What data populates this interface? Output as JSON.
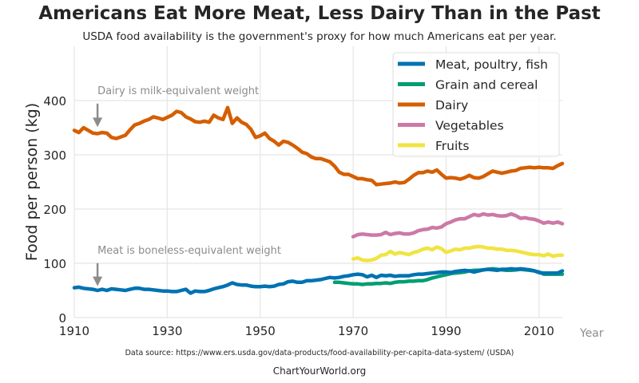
{
  "title": "Americans Eat More Meat, Less Dairy Than in the Past",
  "subtitle": "USDA food availability is the government's proxy for how much Americans eat per year.",
  "source": "Data source: https://www.ers.usda.gov/data-products/food-availability-per-capita-data-system/ (USDA)",
  "footer": "ChartYourWorld.org",
  "chart_data": {
    "type": "line",
    "ylabel": "Food per person (kg)",
    "xlabel": "Year",
    "xlim": [
      1910,
      2015
    ],
    "ylim": [
      0,
      500
    ],
    "xticks": [
      1910,
      1930,
      1950,
      1970,
      1990,
      2010
    ],
    "yticks": [
      0,
      100,
      200,
      300,
      400
    ],
    "grid": true,
    "legend_position": "top-right",
    "annotations": [
      {
        "text": "Dairy is milk-equivalent weight",
        "x": 1915,
        "y": 412,
        "arrow_to": 345
      },
      {
        "text": "Meat is boneless-equivalent weight",
        "x": 1915,
        "y": 118,
        "arrow_to": 52
      }
    ],
    "series": [
      {
        "name": "Meat, poultry, fish",
        "color": "#0072B2",
        "x": [
          1910,
          1911,
          1912,
          1913,
          1914,
          1915,
          1916,
          1917,
          1918,
          1919,
          1920,
          1921,
          1922,
          1923,
          1924,
          1925,
          1926,
          1927,
          1928,
          1929,
          1930,
          1931,
          1932,
          1933,
          1934,
          1935,
          1936,
          1937,
          1938,
          1939,
          1940,
          1941,
          1942,
          1943,
          1944,
          1945,
          1946,
          1947,
          1948,
          1949,
          1950,
          1951,
          1952,
          1953,
          1954,
          1955,
          1956,
          1957,
          1958,
          1959,
          1960,
          1961,
          1962,
          1963,
          1964,
          1965,
          1966,
          1967,
          1968,
          1969,
          1970,
          1971,
          1972,
          1973,
          1974,
          1975,
          1976,
          1977,
          1978,
          1979,
          1980,
          1981,
          1982,
          1983,
          1984,
          1985,
          1986,
          1987,
          1988,
          1989,
          1990,
          1991,
          1992,
          1993,
          1994,
          1995,
          1996,
          1997,
          1998,
          1999,
          2000,
          2001,
          2002,
          2003,
          2004,
          2005,
          2006,
          2007,
          2008,
          2009,
          2010,
          2011,
          2012,
          2013,
          2014,
          2015
        ],
        "values": [
          55,
          56,
          54,
          53,
          52,
          50,
          52,
          50,
          53,
          52,
          51,
          50,
          52,
          54,
          54,
          52,
          52,
          51,
          50,
          49,
          49,
          48,
          48,
          50,
          52,
          45,
          49,
          48,
          48,
          50,
          53,
          55,
          57,
          60,
          64,
          61,
          60,
          60,
          58,
          57,
          57,
          58,
          57,
          58,
          61,
          62,
          66,
          67,
          65,
          65,
          68,
          68,
          69,
          70,
          72,
          74,
          73,
          74,
          76,
          77,
          79,
          80,
          79,
          75,
          78,
          74,
          78,
          77,
          78,
          76,
          77,
          77,
          77,
          79,
          80,
          80,
          81,
          82,
          83,
          84,
          84,
          83,
          85,
          86,
          87,
          86,
          84,
          86,
          88,
          89,
          88,
          87,
          89,
          89,
          90,
          89,
          90,
          89,
          88,
          86,
          83,
          82,
          82,
          82,
          82,
          86
        ]
      },
      {
        "name": "Grain and cereal",
        "color": "#009E73",
        "x": [
          1966,
          1967,
          1968,
          1969,
          1970,
          1971,
          1972,
          1973,
          1974,
          1975,
          1976,
          1977,
          1978,
          1979,
          1980,
          1981,
          1982,
          1983,
          1984,
          1985,
          1986,
          1987,
          1988,
          1989,
          1990,
          1991,
          1992,
          1993,
          1994,
          1995,
          1996,
          1997,
          1998,
          1999,
          2000,
          2001,
          2002,
          2003,
          2004,
          2005,
          2006,
          2007,
          2008,
          2009,
          2010,
          2011,
          2012,
          2013,
          2014,
          2015
        ],
        "values": [
          65,
          65,
          64,
          63,
          62,
          62,
          61,
          62,
          62,
          63,
          63,
          64,
          63,
          65,
          66,
          66,
          67,
          67,
          68,
          68,
          70,
          73,
          75,
          77,
          79,
          81,
          82,
          83,
          84,
          86,
          87,
          87,
          88,
          89,
          90,
          89,
          88,
          87,
          87,
          88,
          89,
          88,
          87,
          86,
          84,
          80,
          80,
          80,
          80,
          80
        ]
      },
      {
        "name": "Dairy",
        "color": "#D55E00",
        "x": [
          1910,
          1911,
          1912,
          1913,
          1914,
          1915,
          1916,
          1917,
          1918,
          1919,
          1920,
          1921,
          1922,
          1923,
          1924,
          1925,
          1926,
          1927,
          1928,
          1929,
          1930,
          1931,
          1932,
          1933,
          1934,
          1935,
          1936,
          1937,
          1938,
          1939,
          1940,
          1941,
          1942,
          1943,
          1944,
          1945,
          1946,
          1947,
          1948,
          1949,
          1950,
          1951,
          1952,
          1953,
          1954,
          1955,
          1956,
          1957,
          1958,
          1959,
          1960,
          1961,
          1962,
          1963,
          1964,
          1965,
          1966,
          1967,
          1968,
          1969,
          1970,
          1971,
          1972,
          1973,
          1974,
          1975,
          1976,
          1977,
          1978,
          1979,
          1980,
          1981,
          1982,
          1983,
          1984,
          1985,
          1986,
          1987,
          1988,
          1989,
          1990,
          1991,
          1992,
          1993,
          1994,
          1995,
          1996,
          1997,
          1998,
          1999,
          2000,
          2001,
          2002,
          2003,
          2004,
          2005,
          2006,
          2007,
          2008,
          2009,
          2010,
          2011,
          2012,
          2013,
          2014,
          2015
        ],
        "values": [
          345,
          341,
          350,
          345,
          340,
          339,
          341,
          340,
          332,
          330,
          333,
          336,
          346,
          355,
          358,
          362,
          365,
          370,
          368,
          365,
          369,
          373,
          380,
          378,
          370,
          366,
          361,
          360,
          362,
          360,
          373,
          368,
          365,
          387,
          358,
          368,
          360,
          356,
          347,
          332,
          335,
          340,
          330,
          325,
          318,
          325,
          323,
          318,
          312,
          305,
          302,
          296,
          293,
          293,
          290,
          287,
          279,
          268,
          264,
          264,
          260,
          256,
          256,
          254,
          253,
          245,
          246,
          247,
          248,
          250,
          248,
          249,
          255,
          262,
          267,
          267,
          270,
          268,
          272,
          264,
          257,
          258,
          257,
          255,
          258,
          262,
          258,
          257,
          260,
          265,
          270,
          268,
          266,
          268,
          270,
          271,
          275,
          276,
          277,
          276,
          277,
          276,
          276,
          275,
          280,
          284
        ]
      },
      {
        "name": "Vegetables",
        "color": "#CC79A7",
        "x": [
          1970,
          1971,
          1972,
          1973,
          1974,
          1975,
          1976,
          1977,
          1978,
          1979,
          1980,
          1981,
          1982,
          1983,
          1984,
          1985,
          1986,
          1987,
          1988,
          1989,
          1990,
          1991,
          1992,
          1993,
          1994,
          1995,
          1996,
          1997,
          1998,
          1999,
          2000,
          2001,
          2002,
          2003,
          2004,
          2005,
          2006,
          2007,
          2008,
          2009,
          2010,
          2011,
          2012,
          2013,
          2014,
          2015
        ],
        "values": [
          149,
          153,
          154,
          153,
          152,
          152,
          153,
          157,
          153,
          155,
          156,
          154,
          154,
          156,
          160,
          162,
          163,
          166,
          165,
          167,
          173,
          176,
          180,
          182,
          182,
          186,
          190,
          188,
          191,
          189,
          190,
          188,
          187,
          188,
          191,
          188,
          183,
          184,
          182,
          181,
          178,
          174,
          176,
          174,
          176,
          173
        ]
      },
      {
        "name": "Fruits",
        "color": "#F0E442",
        "x": [
          1970,
          1971,
          1972,
          1973,
          1974,
          1975,
          1976,
          1977,
          1978,
          1979,
          1980,
          1981,
          1982,
          1983,
          1984,
          1985,
          1986,
          1987,
          1988,
          1989,
          1990,
          1991,
          1992,
          1993,
          1994,
          1995,
          1996,
          1997,
          1998,
          1999,
          2000,
          2001,
          2002,
          2003,
          2004,
          2005,
          2006,
          2007,
          2008,
          2009,
          2010,
          2011,
          2012,
          2013,
          2014,
          2015
        ],
        "values": [
          108,
          110,
          106,
          105,
          106,
          109,
          115,
          116,
          122,
          117,
          120,
          118,
          116,
          120,
          122,
          126,
          128,
          125,
          130,
          127,
          120,
          123,
          126,
          125,
          128,
          128,
          130,
          131,
          130,
          128,
          128,
          126,
          126,
          124,
          124,
          123,
          121,
          119,
          117,
          116,
          116,
          114,
          117,
          113,
          115,
          115
        ]
      }
    ]
  }
}
